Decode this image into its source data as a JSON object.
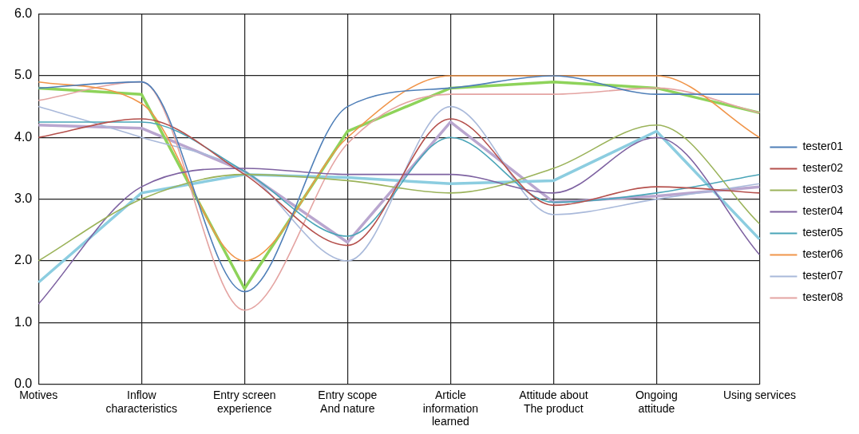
{
  "chart_data": {
    "type": "line",
    "categories": [
      "Motives",
      "Inflow characteristics",
      "Entry screen experience",
      "Entry scope And nature",
      "Article information learned",
      "Attitude about The product",
      "Ongoing attitude",
      "Using services"
    ],
    "series": [
      {
        "name": "tester01",
        "color": "#4f7fb8",
        "values": [
          4.8,
          4.9,
          1.5,
          4.5,
          4.8,
          5.0,
          4.7,
          4.7
        ]
      },
      {
        "name": "tester02",
        "color": "#b5504c",
        "values": [
          4.0,
          4.3,
          3.4,
          2.25,
          4.3,
          2.9,
          3.2,
          3.1
        ]
      },
      {
        "name": "tester03",
        "color": "#9bb35a",
        "values": [
          2.0,
          3.0,
          3.4,
          3.3,
          3.1,
          3.5,
          4.2,
          2.6
        ]
      },
      {
        "name": "tester04",
        "color": "#7e62a1",
        "values": [
          1.3,
          3.2,
          3.5,
          3.4,
          3.4,
          3.1,
          4.0,
          2.1
        ]
      },
      {
        "name": "tester05",
        "color": "#4aa5b8",
        "values": [
          4.25,
          4.25,
          3.45,
          2.4,
          4.0,
          2.95,
          3.1,
          3.4
        ]
      },
      {
        "name": "tester06",
        "color": "#f0954a",
        "values": [
          4.9,
          4.55,
          2.0,
          4.0,
          5.0,
          5.0,
          5.0,
          4.0
        ]
      },
      {
        "name": "tester07",
        "color": "#a9b9da",
        "values": [
          4.5,
          4.0,
          3.45,
          2.0,
          4.5,
          2.75,
          3.0,
          3.25
        ]
      },
      {
        "name": "tester08",
        "color": "#e4a4a2",
        "values": [
          4.6,
          4.9,
          1.2,
          3.9,
          4.7,
          4.7,
          4.8,
          4.4
        ]
      },
      {
        "color": "#8ed35a",
        "values": [
          4.8,
          4.7,
          1.55,
          4.1,
          4.8,
          4.9,
          4.8,
          4.4
        ]
      },
      {
        "color": "#8ccde0",
        "values": [
          1.65,
          3.1,
          3.4,
          3.35,
          3.25,
          3.3,
          4.1,
          2.35
        ]
      },
      {
        "color": "#b9a6cf",
        "values": [
          4.2,
          4.15,
          3.45,
          2.3,
          4.25,
          2.95,
          3.05,
          3.2
        ]
      }
    ],
    "ylim": [
      0,
      6
    ],
    "yticks": [
      {
        "value": 0,
        "label": "0.0"
      },
      {
        "value": 1,
        "label": "1.0"
      },
      {
        "value": 2,
        "label": "2.0"
      },
      {
        "value": 3,
        "label": "3.0"
      },
      {
        "value": 4,
        "label": "4.0"
      },
      {
        "value": 5,
        "label": "5.0"
      },
      {
        "value": 6,
        "label": "6.0"
      }
    ],
    "grid": true,
    "legend": "right",
    "marker": "none"
  }
}
